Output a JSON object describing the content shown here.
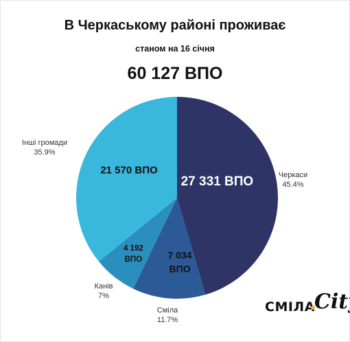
{
  "chart_data": {
    "type": "pie",
    "title": "В Черкаському районі проживає",
    "subtitle": "станом на 16 січня",
    "total_label": "60 127 ВПО",
    "slices": [
      {
        "name": "Черкаси",
        "value": 27331,
        "percent_label": "45.4%",
        "value_label": "27 331 ВПО",
        "color": "#2e3466"
      },
      {
        "name": "Сміла",
        "value": 7034,
        "percent_label": "11.7%",
        "value_label_l1": "7 034",
        "value_label_l2": "ВПО",
        "color": "#2b5a97"
      },
      {
        "name": "Канів",
        "value": 4192,
        "percent_label": "7%",
        "value_label_l1": "4 192",
        "value_label_l2": "ВПО",
        "color": "#2a8fbf"
      },
      {
        "name": "Інші громади",
        "value": 21570,
        "percent_label": "35.9%",
        "value_label": "21 570 ВПО",
        "color": "#39b7dc"
      }
    ]
  },
  "logo": {
    "text": "СМІЛА",
    "script": "City"
  }
}
